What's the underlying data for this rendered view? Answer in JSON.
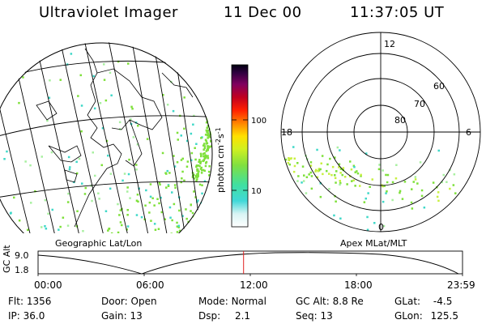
{
  "header": {
    "instrument": "Ultraviolet Imager",
    "date": "11 Dec 00",
    "time": "11:37:05 UT"
  },
  "colorbar": {
    "label": "photon cm",
    "label_exp": "-2",
    "label_unit": "s",
    "label_unit_exp": "-1",
    "ticks": [
      "100",
      "10"
    ]
  },
  "polar_plot": {
    "mlt_labels": [
      "12",
      "18",
      "6",
      "0"
    ],
    "lat_labels": [
      "60",
      "70",
      "80"
    ]
  },
  "panel_labels": {
    "left": "Geographic Lat/Lon",
    "right": "Apex MLat/MLT"
  },
  "orbit": {
    "axis_label": "GC Alt",
    "ytick_top": "9.0",
    "ytick_bottom": "1.8",
    "time_ticks": [
      "00:00",
      "06:00",
      "12:00",
      "18:00",
      "23:59"
    ],
    "current_marker_time_hours": 11.62
  },
  "status": {
    "flt_label": "Flt:",
    "flt_value": "1356",
    "ip_label": "IP:",
    "ip_value": "36.0",
    "door_label": "Door:",
    "door_value": "Open",
    "gain_label": "Gain:",
    "gain_value": "13",
    "mode_label": "Mode:",
    "mode_value": "Normal",
    "dsp_label": "Dsp:",
    "dsp_value": "2.1",
    "gcalt_label": "GC Alt:",
    "gcalt_value": "8.8 Re",
    "seq_label": "Seq:",
    "seq_value": "13",
    "glat_label": "GLat:",
    "glat_value": "-4.5",
    "glon_label": "GLon:",
    "glon_value": "125.5"
  },
  "colors": {
    "aurora_green": "#7ee03a",
    "aurora_teal": "#3fd8c8",
    "aurora_lightgreen": "#a8f0a0",
    "marker_red": "#e02020"
  }
}
